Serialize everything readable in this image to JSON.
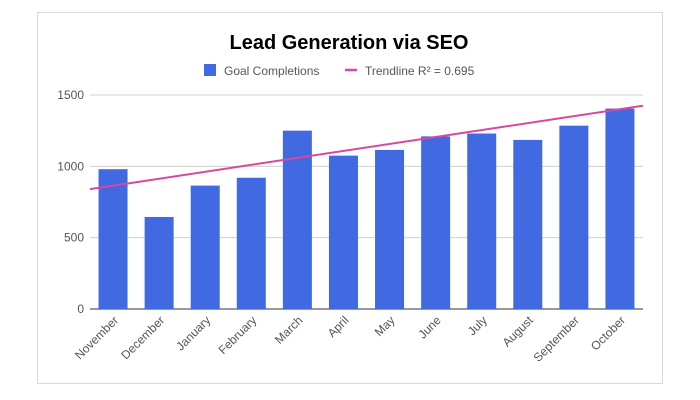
{
  "chart_data": {
    "type": "bar",
    "title": "Lead Generation via SEO",
    "categories": [
      "November",
      "December",
      "January",
      "February",
      "March",
      "April",
      "May",
      "June",
      "July",
      "August",
      "September",
      "October"
    ],
    "series": [
      {
        "name": "Goal Completions",
        "color": "#4169e1",
        "values": [
          980,
          645,
          865,
          920,
          1250,
          1075,
          1115,
          1210,
          1230,
          1185,
          1285,
          1405
        ]
      }
    ],
    "trendline": {
      "name": "Trendline R² = 0.695",
      "color": "#d9479e",
      "type": "linear",
      "start_value": 840,
      "end_value": 1425
    },
    "y_ticks": [
      "0",
      "500",
      "1000",
      "1500"
    ],
    "ylim": [
      0,
      1500
    ],
    "grid": true,
    "legend_position": "top",
    "xlabel": "",
    "ylabel": ""
  }
}
